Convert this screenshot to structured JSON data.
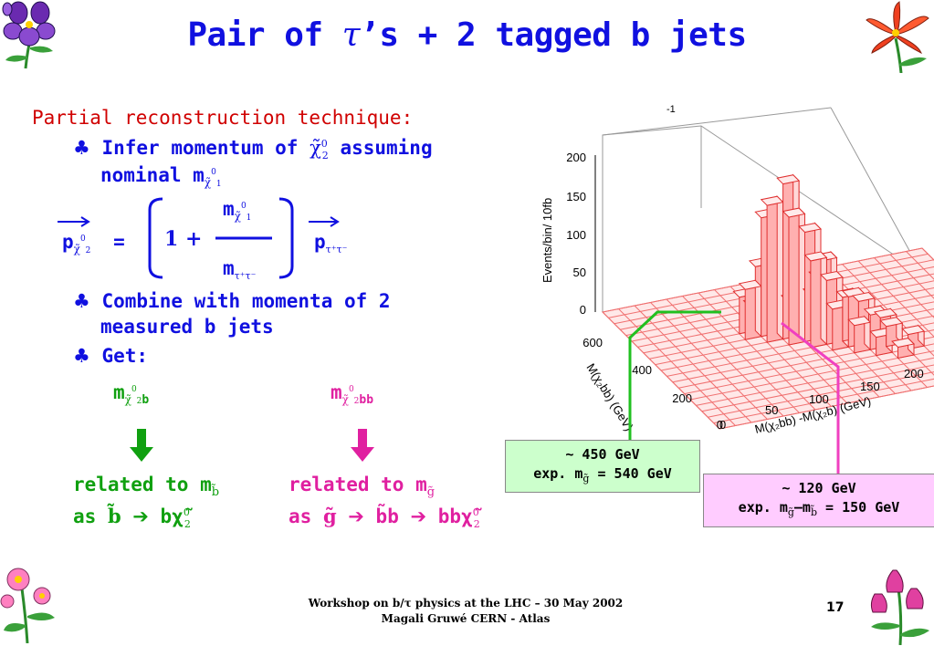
{
  "slide": {
    "title_pre": "Pair of ",
    "title_tau": "τ",
    "title_post": "’s + 2 tagged b jets"
  },
  "content": {
    "heading": "Partial reconstruction technique:",
    "bullet1_l1_a": "Infer momentum of ",
    "bullet1_l1_chi": "χ̃",
    "bullet1_l1_b": " assuming",
    "bullet1_l2": "nominal m",
    "formula_p": "p",
    "formula_eq": "=",
    "formula_one": "1 +",
    "formula_num_m": "m",
    "formula_den_m": "m",
    "formula_rhs_p": "p",
    "bullet2_l1": "Combine with momenta of 2",
    "bullet2_l2": "measured b jets",
    "bullet3": "Get:",
    "get_left": "m",
    "get_left_sub_tail": "b",
    "get_right": "m",
    "get_right_sub_tail": "bb",
    "left_related_1": "related to m",
    "left_related_2_a": "as ",
    "left_related_2_b": "b̃",
    "left_related_2_arrow": "➔",
    "left_related_2_c": " bχ̃",
    "right_related_1": "related to m",
    "right_related_2_a": "as ",
    "right_related_2_b": "g̃",
    "right_related_2_c": "b̃b",
    "right_related_2_d": "bbχ̃",
    "sub_chi": "χ̃",
    "sub_b_tilde": "b̃",
    "sub_g_tilde": "g̃",
    "sub_0": "0",
    "sub_1": "1",
    "sub_2": "2",
    "sub_tautau": "τ⁺τ⁻"
  },
  "chart_data": {
    "type": "lego3d",
    "ylabel": "Events/bin/ 10fb",
    "ylabel_exp": "-1",
    "z_ticks": [
      "0",
      "50",
      "100",
      "150",
      "200"
    ],
    "x_axis_label": "M(χ₂bb) (GeV)",
    "x_ticks": [
      "600",
      "400",
      "200",
      "0"
    ],
    "y_axis_label": "M(χ₂bb) -M(χ₂b) (GeV)",
    "y_ticks": [
      "0",
      "50",
      "100",
      "150",
      "200"
    ]
  },
  "boxes": {
    "green_line1": "~ 450 GeV",
    "green_line2_a": "exp. m",
    "green_line2_b": " = 540 GeV",
    "pink_line1": "~ 120 GeV",
    "pink_line2_a": "exp. m",
    "pink_line2_b": "–m",
    "pink_line2_c": " = 150 GeV"
  },
  "footer": {
    "line1": "Workshop on b/τ physics at the LHC – 30 May 2002",
    "line2": "Magali Gruwé CERN - Atlas",
    "page": "17"
  },
  "colors": {
    "title": "#1010e0",
    "heading": "#d00000",
    "green": "#10a010",
    "magenta": "#e020a0",
    "green_box": "#ccffcc",
    "pink_box": "#ffccff",
    "lego_bar": "#ff5555",
    "lego_bar_light": "#ffd0d0"
  }
}
